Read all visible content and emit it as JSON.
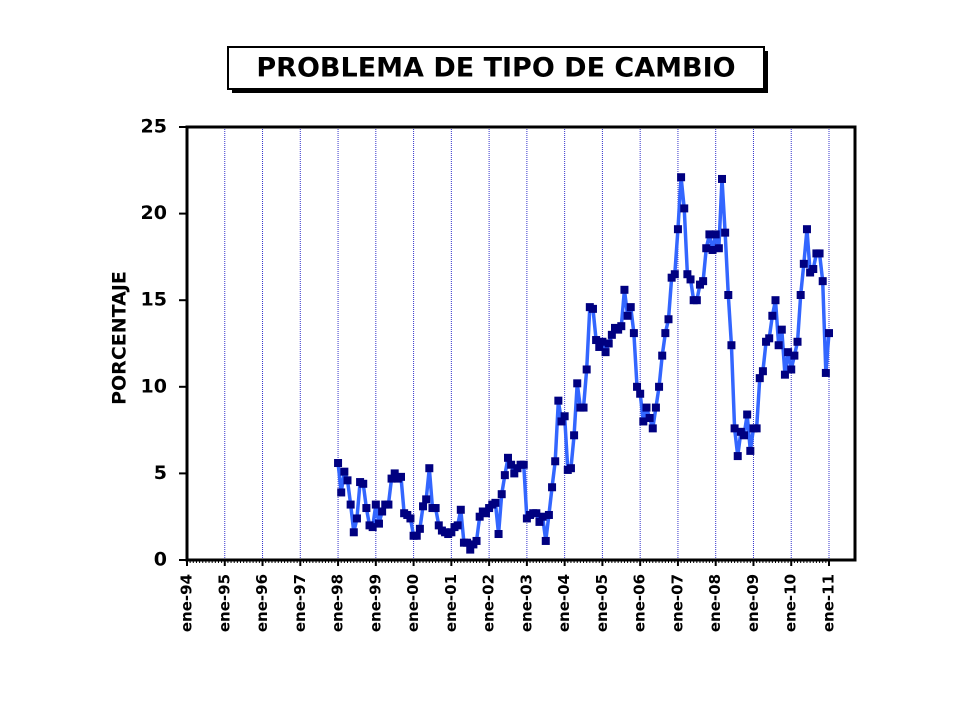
{
  "chart_data": {
    "type": "line",
    "title": "PROBLEMA DE TIPO DE CAMBIO",
    "y_label": "PORCENTAJE",
    "categories": [
      "ene-94",
      null,
      null,
      null,
      null,
      null,
      null,
      null,
      null,
      null,
      null,
      null,
      "ene-95",
      null,
      null,
      null,
      null,
      null,
      null,
      null,
      null,
      null,
      null,
      null,
      "ene-96",
      null,
      null,
      null,
      null,
      null,
      null,
      null,
      null,
      null,
      null,
      null,
      "ene-97",
      null,
      null,
      null,
      null,
      null,
      null,
      null,
      null,
      null,
      null,
      null,
      "ene-98",
      null,
      null,
      null,
      null,
      null,
      null,
      null,
      null,
      null,
      null,
      null,
      "ene-99",
      null,
      null,
      null,
      null,
      null,
      null,
      null,
      null,
      null,
      null,
      null,
      "ene-00",
      null,
      null,
      null,
      null,
      null,
      null,
      null,
      null,
      null,
      null,
      null,
      "ene-01",
      null,
      null,
      null,
      null,
      null,
      null,
      null,
      null,
      null,
      null,
      null,
      "ene-02",
      null,
      null,
      null,
      null,
      null,
      null,
      null,
      null,
      null,
      null,
      null,
      "ene-03",
      null,
      null,
      null,
      null,
      null,
      null,
      null,
      null,
      null,
      null,
      null,
      "ene-04",
      null,
      null,
      null,
      null,
      null,
      null,
      null,
      null,
      null,
      null,
      null,
      "ene-05",
      null,
      null,
      null,
      null,
      null,
      null,
      null,
      null,
      null,
      null,
      null,
      "ene-06",
      null,
      null,
      null,
      null,
      null,
      null,
      null,
      null,
      null,
      null,
      null,
      "ene-07",
      null,
      null,
      null,
      null,
      null,
      null,
      null,
      null,
      null,
      null,
      null,
      "ene-08",
      null,
      null,
      null,
      null,
      null,
      null,
      null,
      null,
      null,
      null,
      null,
      "ene-09",
      null,
      null,
      null,
      null,
      null,
      null,
      null,
      null,
      null,
      null,
      null,
      "ene-10",
      null,
      null,
      null,
      null,
      null,
      null,
      null,
      null,
      null,
      null,
      null,
      "ene-11"
    ],
    "values": [
      null,
      null,
      null,
      null,
      null,
      null,
      null,
      null,
      null,
      null,
      null,
      null,
      null,
      null,
      null,
      null,
      null,
      null,
      null,
      null,
      null,
      null,
      null,
      null,
      null,
      null,
      null,
      null,
      null,
      null,
      null,
      null,
      null,
      null,
      null,
      null,
      null,
      null,
      null,
      null,
      null,
      null,
      null,
      null,
      null,
      null,
      null,
      null,
      5.6,
      3.9,
      5.1,
      4.6,
      3.2,
      1.6,
      2.4,
      4.5,
      4.4,
      3.0,
      2.0,
      1.9,
      3.2,
      2.1,
      2.8,
      3.2,
      3.2,
      4.7,
      5.0,
      4.7,
      4.8,
      2.7,
      2.6,
      2.4,
      1.4,
      1.4,
      1.8,
      3.1,
      3.5,
      5.3,
      3.0,
      3.0,
      2.0,
      1.7,
      1.6,
      1.5,
      1.6,
      1.9,
      2.0,
      2.9,
      1.0,
      1.0,
      0.6,
      0.9,
      1.1,
      2.5,
      2.8,
      2.7,
      3.0,
      3.2,
      3.3,
      1.5,
      3.8,
      4.9,
      5.9,
      5.5,
      5.0,
      5.3,
      5.5,
      5.5,
      2.4,
      2.6,
      2.7,
      2.7,
      2.2,
      2.5,
      1.1,
      2.6,
      4.2,
      5.7,
      9.2,
      8.0,
      8.3,
      5.2,
      5.3,
      7.2,
      10.2,
      8.8,
      8.8,
      11.0,
      14.6,
      14.5,
      12.7,
      12.3,
      12.6,
      12.0,
      12.5,
      13.0,
      13.4,
      13.3,
      13.5,
      15.6,
      14.1,
      14.6,
      13.1,
      10.0,
      9.6,
      8.0,
      8.8,
      8.2,
      7.6,
      8.8,
      10.0,
      11.8,
      13.1,
      13.9,
      16.3,
      16.5,
      19.1,
      22.1,
      20.3,
      16.5,
      16.2,
      15.0,
      15.0,
      15.9,
      16.1,
      18.0,
      18.8,
      17.9,
      18.8,
      18.0,
      22.0,
      18.9,
      15.3,
      12.4,
      7.6,
      6.0,
      7.4,
      7.2,
      8.4,
      6.3,
      7.6,
      7.6,
      10.5,
      10.9,
      12.6,
      12.8,
      14.1,
      15.0,
      12.4,
      13.3,
      10.7,
      12.0,
      11.0,
      11.8,
      12.6,
      15.3,
      17.1,
      19.1,
      16.6,
      16.8,
      17.7,
      17.7,
      16.1,
      10.8,
      13.1
    ],
    "color": "#3366ff",
    "marker_color": "#000080",
    "ylim": [
      0,
      25
    ],
    "yticks": [
      0,
      5,
      10,
      15,
      20,
      25
    ],
    "grid": true
  }
}
